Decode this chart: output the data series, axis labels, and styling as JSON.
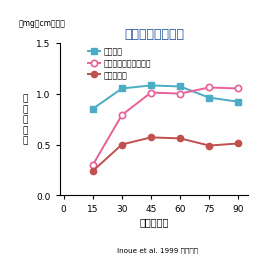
{
  "title": "高齢者の発汗反応",
  "xlabel": "時間（分）",
  "ylabel": "背\n部\n発\n汗\n量",
  "unit_label": "（mg／cm／分）",
  "citation": "Inoue et al. 1999 より改変",
  "x": [
    0,
    15,
    30,
    45,
    60,
    75,
    90
  ],
  "young_adults": [
    null,
    0.85,
    1.05,
    1.08,
    1.07,
    0.96,
    0.92
  ],
  "active_elderly": [
    null,
    0.3,
    0.79,
    1.01,
    1.0,
    1.06,
    1.05
  ],
  "general_elderly": [
    null,
    0.24,
    0.5,
    0.57,
    0.56,
    0.49,
    0.51
  ],
  "young_color": "#4bacc6",
  "active_color": "#e8609a",
  "general_color": "#c0504d",
  "ylim": [
    0.0,
    1.5
  ],
  "yticks": [
    0.0,
    0.5,
    1.0,
    1.5
  ],
  "xticks": [
    0,
    15,
    30,
    45,
    60,
    75,
    90
  ],
  "legend_young": "若年成人",
  "legend_active": "運動をしている高齢者",
  "legend_general": "一般高齢者",
  "title_color": "#1f4e9a",
  "bg_color": "#ffffff"
}
